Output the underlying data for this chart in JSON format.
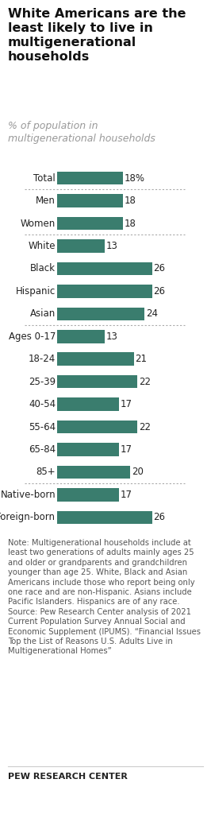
{
  "title": "White Americans are the\nleast likely to live in\nmultigenerational\nhouseholds",
  "subtitle": "% of population in\nmultigenerational households",
  "categories": [
    "Total",
    "Men",
    "Women",
    "White",
    "Black",
    "Hispanic",
    "Asian",
    "Ages 0-17",
    "18-24",
    "25-39",
    "40-54",
    "55-64",
    "65-84",
    "85+",
    "Native-born",
    "Foreign-born"
  ],
  "values": [
    18,
    18,
    18,
    13,
    26,
    26,
    24,
    13,
    21,
    22,
    17,
    22,
    17,
    20,
    17,
    26
  ],
  "bar_color": "#3a7d6e",
  "label_suffix": [
    "18%",
    "18",
    "18",
    "13",
    "26",
    "26",
    "24",
    "13",
    "21",
    "22",
    "17",
    "22",
    "17",
    "20",
    "17",
    "26"
  ],
  "divider_after": [
    0,
    2,
    6,
    13
  ],
  "background_color": "#ffffff",
  "note_text": "Note: Multigenerational households include at least two generations of adults mainly ages 25 and older or grandparents and grandchildren younger than age 25. White, Black and Asian Americans include those who report being only one race and are non-Hispanic. Asians include Pacific Islanders. Hispanics are of any race.\nSource: Pew Research Center analysis of 2021 Current Population Survey Annual Social and Economic Supplement (IPUMS). “Financial Issues Top the List of Reasons U.S. Adults Live in Multigenerational Homes”",
  "footer": "PEW RESEARCH CENTER",
  "max_val": 30,
  "title_fontsize": 11.5,
  "subtitle_fontsize": 9,
  "bar_label_fontsize": 8.5,
  "category_fontsize": 8.5,
  "note_fontsize": 7.2,
  "footer_fontsize": 8
}
